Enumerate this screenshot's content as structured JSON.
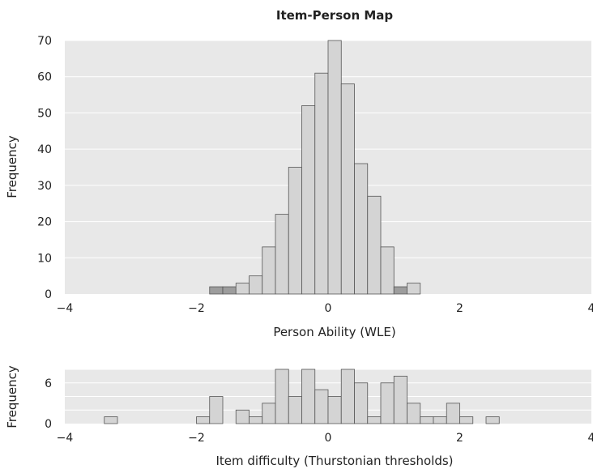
{
  "chart_data": [
    {
      "type": "bar",
      "title": "Item-Person Map",
      "xlabel": "Person Ability (WLE)",
      "ylabel": "Frequency",
      "xlim": [
        -4,
        4
      ],
      "ylim": [
        0,
        70
      ],
      "xticks": [
        "−4",
        "−2",
        "0",
        "2",
        "4"
      ],
      "yticks": [
        "0",
        "10",
        "20",
        "30",
        "40",
        "50",
        "60",
        "70"
      ],
      "grid": "horizontal",
      "bin_width": 0.2,
      "bins": [
        {
          "start": -1.8,
          "value": 2,
          "highlight": true
        },
        {
          "start": -1.6,
          "value": 2,
          "highlight": true
        },
        {
          "start": -1.4,
          "value": 3
        },
        {
          "start": -1.2,
          "value": 5
        },
        {
          "start": -1.0,
          "value": 13
        },
        {
          "start": -0.8,
          "value": 22
        },
        {
          "start": -0.6,
          "value": 35
        },
        {
          "start": -0.4,
          "value": 52
        },
        {
          "start": -0.2,
          "value": 61
        },
        {
          "start": 0.0,
          "value": 70
        },
        {
          "start": 0.2,
          "value": 58
        },
        {
          "start": 0.4,
          "value": 36
        },
        {
          "start": 0.6,
          "value": 27
        },
        {
          "start": 0.8,
          "value": 13
        },
        {
          "start": 1.0,
          "value": 2,
          "highlight": true
        },
        {
          "start": 1.2,
          "value": 3
        }
      ]
    },
    {
      "type": "bar",
      "title": "",
      "xlabel": "Item difficulty (Thurstonian thresholds)",
      "ylabel": "Frequency",
      "xlim": [
        -4,
        4
      ],
      "ylim": [
        0,
        8
      ],
      "xticks": [
        "−4",
        "−2",
        "0",
        "2",
        "4"
      ],
      "yticks": [
        "0",
        "6"
      ],
      "grid": "horizontal",
      "bin_width": 0.2,
      "bins": [
        {
          "start": -3.4,
          "value": 1
        },
        {
          "start": -2.0,
          "value": 1
        },
        {
          "start": -1.8,
          "value": 4
        },
        {
          "start": -1.4,
          "value": 2
        },
        {
          "start": -1.2,
          "value": 1
        },
        {
          "start": -1.0,
          "value": 3
        },
        {
          "start": -0.8,
          "value": 8
        },
        {
          "start": -0.6,
          "value": 4
        },
        {
          "start": -0.4,
          "value": 8
        },
        {
          "start": -0.2,
          "value": 5
        },
        {
          "start": 0.0,
          "value": 4
        },
        {
          "start": 0.2,
          "value": 8
        },
        {
          "start": 0.4,
          "value": 6
        },
        {
          "start": 0.6,
          "value": 1
        },
        {
          "start": 0.8,
          "value": 6
        },
        {
          "start": 1.0,
          "value": 7
        },
        {
          "start": 1.2,
          "value": 3
        },
        {
          "start": 1.4,
          "value": 1
        },
        {
          "start": 1.6,
          "value": 1
        },
        {
          "start": 1.8,
          "value": 3
        },
        {
          "start": 2.0,
          "value": 1
        },
        {
          "start": 2.4,
          "value": 1
        }
      ]
    }
  ],
  "colors": {
    "panel_bg": "#e8e8e8",
    "grid": "#ffffff",
    "bar_fill": "#d4d4d4",
    "bar_highlight": "#9d9d9d",
    "bar_stroke": "#555555"
  }
}
